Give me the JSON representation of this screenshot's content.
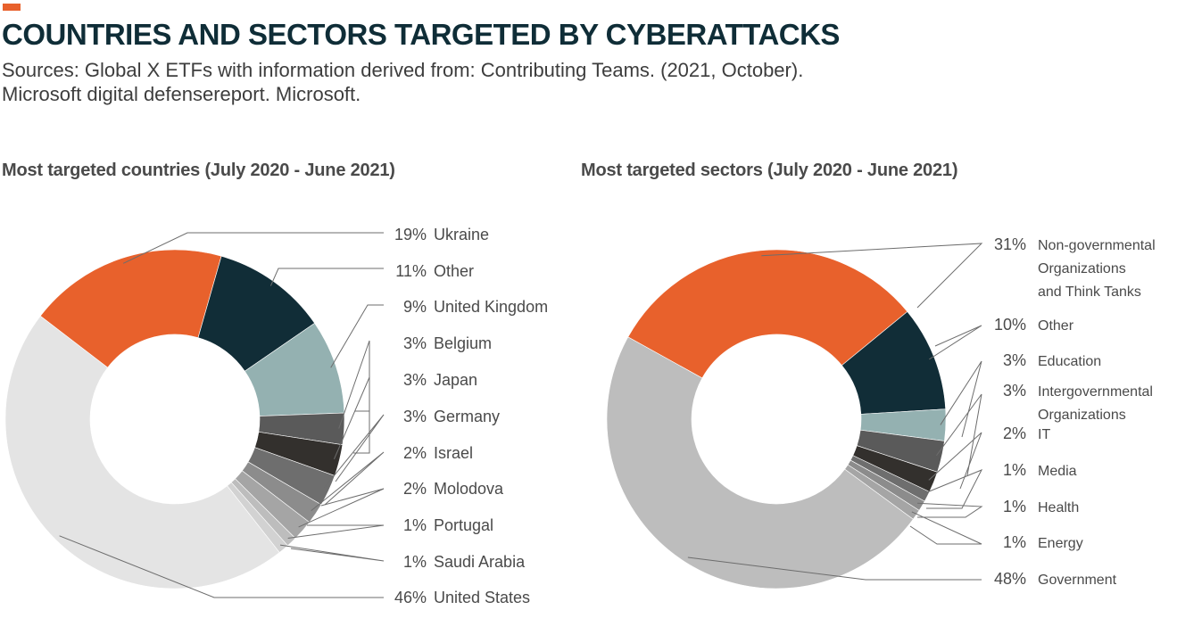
{
  "header": {
    "title": "COUNTRIES AND SECTORS TARGETED BY CYBERATTACKS",
    "sources_line1": "Sources: Global X ETFs with information derived from: Contributing Teams. (2021, October).",
    "sources_line2": "Microsoft digital defensereport. Microsoft.",
    "accent_color": "#e8612c"
  },
  "chart_data": [
    {
      "type": "pie",
      "variant": "donut",
      "title": "Most targeted countries (July 2020 - June 2021)",
      "unit": "%",
      "slices": [
        {
          "label": "Ukraine",
          "value": 19,
          "pct_text": "19%",
          "color": "#e8612c"
        },
        {
          "label": "Other",
          "value": 11,
          "pct_text": "11%",
          "color": "#112d37"
        },
        {
          "label": "United Kingdom",
          "value": 9,
          "pct_text": "9%",
          "color": "#94b1b1"
        },
        {
          "label": "Belgium",
          "value": 3,
          "pct_text": "3%",
          "color": "#5a5a5a"
        },
        {
          "label": "Japan",
          "value": 3,
          "pct_text": "3%",
          "color": "#33302d"
        },
        {
          "label": "Germany",
          "value": 3,
          "pct_text": "3%",
          "color": "#6e6e6e"
        },
        {
          "label": "Israel",
          "value": 2,
          "pct_text": "2%",
          "color": "#8c8c8c"
        },
        {
          "label": "Molodova",
          "value": 2,
          "pct_text": "2%",
          "color": "#a5a5a5"
        },
        {
          "label": "Portugal",
          "value": 1,
          "pct_text": "1%",
          "color": "#bdbdbd"
        },
        {
          "label": "Saudi Arabia",
          "value": 1,
          "pct_text": "1%",
          "color": "#d2d2d2"
        },
        {
          "label": "United States",
          "value": 46,
          "pct_text": "46%",
          "color": "#e4e4e4"
        }
      ]
    },
    {
      "type": "pie",
      "variant": "donut",
      "title": "Most targeted sectors (July 2020 - June 2021)",
      "unit": "%",
      "slices": [
        {
          "label": "Non-governmental Organizations and Think Tanks",
          "label_lines": [
            "Non-governmental",
            "Organizations",
            "and Think Tanks"
          ],
          "value": 31,
          "pct_text": "31%",
          "color": "#e8612c"
        },
        {
          "label": "Other",
          "label_lines": [
            "Other"
          ],
          "value": 10,
          "pct_text": "10%",
          "color": "#112d37"
        },
        {
          "label": "Education",
          "label_lines": [
            "Education"
          ],
          "value": 3,
          "pct_text": "3%",
          "color": "#94b1b1"
        },
        {
          "label": "Intergovernmental Organizations",
          "label_lines": [
            "Intergovernmental",
            "Organizations"
          ],
          "value": 3,
          "pct_text": "3%",
          "color": "#5a5a5a"
        },
        {
          "label": "IT",
          "label_lines": [
            "IT"
          ],
          "value": 2,
          "pct_text": "2%",
          "color": "#33302d"
        },
        {
          "label": "Media",
          "label_lines": [
            "Media"
          ],
          "value": 1,
          "pct_text": "1%",
          "color": "#6e6e6e"
        },
        {
          "label": "Health",
          "label_lines": [
            "Health"
          ],
          "value": 1,
          "pct_text": "1%",
          "color": "#8c8c8c"
        },
        {
          "label": "Energy",
          "label_lines": [
            "Energy"
          ],
          "value": 1,
          "pct_text": "1%",
          "color": "#a5a5a5"
        },
        {
          "label": "Government",
          "label_lines": [
            "Government"
          ],
          "value": 48,
          "pct_text": "48%",
          "color": "#bdbdbd"
        }
      ]
    }
  ]
}
